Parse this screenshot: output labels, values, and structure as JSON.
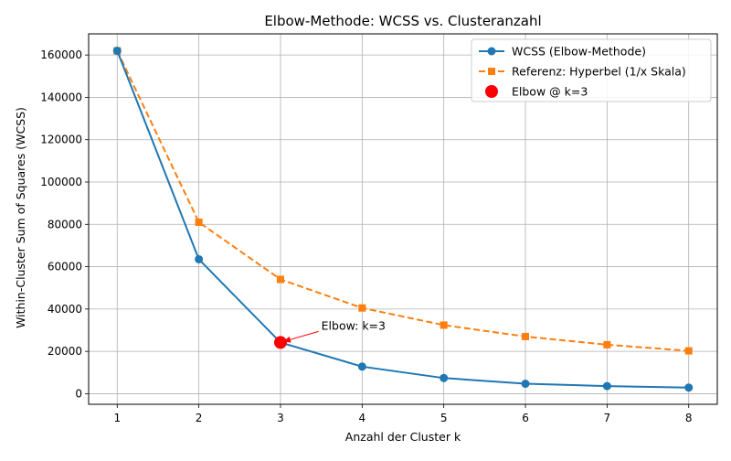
{
  "chart_data": {
    "type": "line",
    "title": "Elbow-Methode: WCSS vs. Clusteranzahl",
    "xlabel": "Anzahl der Cluster k",
    "ylabel": "Within-Cluster Sum of Squares (WCSS)",
    "x": [
      1,
      2,
      3,
      4,
      5,
      6,
      7,
      8
    ],
    "xlim": [
      0.65,
      8.35
    ],
    "ylim": [
      -5000,
      170000
    ],
    "xticks": [
      1,
      2,
      3,
      4,
      5,
      6,
      7,
      8
    ],
    "yticks": [
      0,
      20000,
      40000,
      60000,
      80000,
      100000,
      120000,
      140000,
      160000
    ],
    "grid": true,
    "legend_position": "top-right",
    "series": [
      {
        "name": "WCSS (Elbow-Methode)",
        "style": "solid",
        "marker": "circle",
        "color": "#1f77b4",
        "values": [
          162000,
          63500,
          24200,
          12800,
          7400,
          4700,
          3600,
          2900
        ]
      },
      {
        "name": "Referenz: Hyperbel (1/x Skala)",
        "style": "dashed",
        "marker": "square",
        "color": "#ff7f0e",
        "values": [
          162000,
          81000,
          54000,
          40500,
          32400,
          27000,
          23143,
          20250
        ]
      }
    ],
    "highlight": {
      "name": "Elbow @ k=3",
      "x": 3,
      "y": 24200,
      "color": "#ff0000"
    },
    "annotation": {
      "text": "Elbow: k=3",
      "x": 3.5,
      "y": 32000,
      "arrow_to_x": 3,
      "arrow_to_y": 24200,
      "color": "#ff0000"
    }
  }
}
